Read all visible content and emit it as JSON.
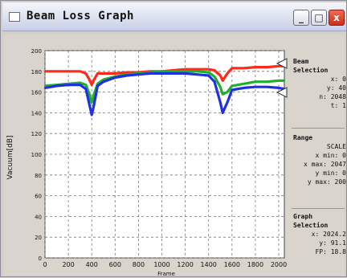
{
  "window": {
    "title": "Beam Loss Graph",
    "minimize_glyph": "_",
    "maximize_glyph": "□",
    "close_glyph": "x"
  },
  "sidebar": {
    "group1": {
      "title": "Beam Selection",
      "rows": [
        "x: 0",
        "y: 40",
        "n: 2048",
        "t: 1"
      ]
    },
    "group2": {
      "title": "Range",
      "rows": [
        "SCALE",
        "x min: 0",
        "x max: 2047",
        "y min: 0",
        "y max: 200"
      ]
    },
    "group3": {
      "title": "Graph Selection",
      "rows": [
        "x: 2024.2",
        "y: 91.1",
        "FP: 18.8"
      ]
    }
  },
  "colors": {
    "red": "#ff2a1a",
    "green": "#20b030",
    "blue": "#2030e0"
  },
  "chart_data": {
    "type": "line",
    "xlabel": "Frame",
    "ylabel": "Vacuum[dB]",
    "xlim": [
      0,
      2048
    ],
    "ylim": [
      0,
      200
    ],
    "x_ticks": [
      "0",
      "200",
      "400",
      "600",
      "800",
      "1000",
      "1200",
      "1400",
      "1600",
      "1800",
      "2000"
    ],
    "y_ticks": [
      "0",
      "20",
      "40",
      "60",
      "80",
      "100",
      "120",
      "140",
      "160",
      "180",
      "200"
    ],
    "grid": true,
    "series": [
      {
        "name": "",
        "color": "red",
        "x": [
          0,
          100,
          200,
          300,
          350,
          380,
          400,
          420,
          450,
          500,
          600,
          700,
          800,
          900,
          1000,
          1100,
          1200,
          1300,
          1400,
          1450,
          1500,
          1520,
          1560,
          1600,
          1700,
          1800,
          1900,
          2000,
          2048
        ],
        "values": [
          180,
          180,
          180,
          180,
          178,
          172,
          167,
          172,
          178,
          178,
          178,
          179,
          179,
          180,
          180,
          181,
          182,
          182,
          182,
          181,
          176,
          171,
          178,
          183,
          183,
          184,
          184,
          185,
          185
        ]
      },
      {
        "name": "",
        "color": "green",
        "x": [
          0,
          100,
          200,
          300,
          350,
          380,
          400,
          420,
          450,
          500,
          600,
          700,
          800,
          900,
          1000,
          1100,
          1200,
          1300,
          1400,
          1450,
          1500,
          1520,
          1560,
          1600,
          1700,
          1800,
          1900,
          2000,
          2048
        ],
        "values": [
          166,
          167,
          168,
          169,
          167,
          158,
          150,
          158,
          168,
          172,
          175,
          177,
          178,
          179,
          180,
          180,
          180,
          180,
          179,
          175,
          165,
          158,
          160,
          166,
          168,
          170,
          170,
          171,
          171
        ]
      },
      {
        "name": "",
        "color": "blue",
        "x": [
          0,
          100,
          200,
          300,
          350,
          380,
          400,
          420,
          450,
          500,
          600,
          700,
          800,
          900,
          1000,
          1100,
          1200,
          1300,
          1400,
          1450,
          1500,
          1520,
          1560,
          1600,
          1700,
          1800,
          1900,
          2000,
          2048
        ],
        "values": [
          164,
          166,
          167,
          167,
          163,
          148,
          138,
          148,
          166,
          170,
          174,
          176,
          177,
          178,
          178,
          178,
          178,
          177,
          176,
          170,
          150,
          140,
          150,
          162,
          164,
          165,
          165,
          164,
          163
        ]
      }
    ]
  }
}
